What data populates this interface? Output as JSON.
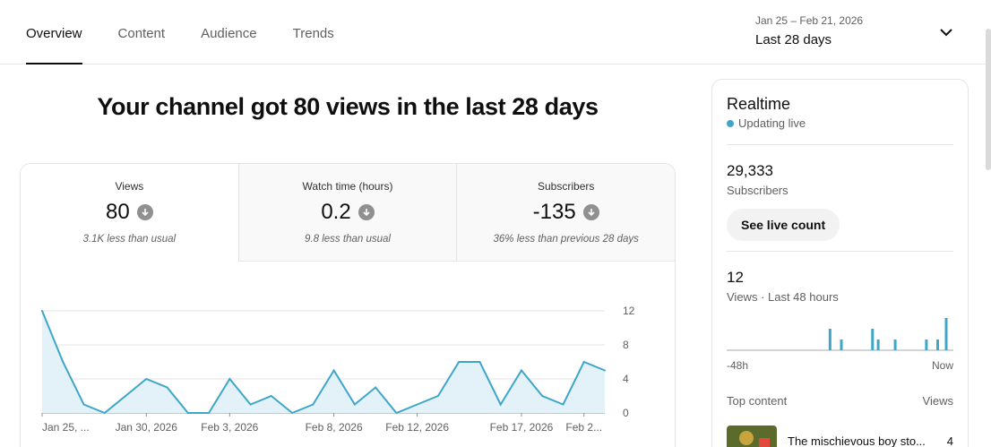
{
  "tabs": [
    {
      "label": "Overview",
      "active": true
    },
    {
      "label": "Content",
      "active": false
    },
    {
      "label": "Audience",
      "active": false
    },
    {
      "label": "Trends",
      "active": false
    }
  ],
  "date_range": {
    "sub": "Jan 25 – Feb 21, 2026",
    "main": "Last 28 days",
    "icon": "chevron-down-icon"
  },
  "headline": "Your channel got 80 views in the last 28 days",
  "metrics": [
    {
      "label": "Views",
      "value": "80",
      "note": "3.1K less than usual",
      "icon": "arrow-down-icon"
    },
    {
      "label": "Watch time (hours)",
      "value": "0.2",
      "note": "9.8 less than usual",
      "icon": "arrow-down-icon"
    },
    {
      "label": "Subscribers",
      "value": "-135",
      "note": "36% less than previous 28 days",
      "icon": "arrow-down-icon"
    }
  ],
  "chart_data": {
    "type": "area",
    "x_ticks": [
      "Jan 25, ...",
      "Jan 30, 2026",
      "Feb 3, 2026",
      "Feb 8, 2026",
      "Feb 12, 2026",
      "Feb 17, 2026",
      "Feb 2..."
    ],
    "x_tick_index": [
      0,
      5,
      9,
      14,
      18,
      23,
      26
    ],
    "y_ticks": [
      0,
      4,
      8,
      12
    ],
    "ylim": [
      0,
      12
    ],
    "values": [
      12,
      6,
      1,
      0,
      2,
      4,
      3,
      0,
      0,
      4,
      1,
      2,
      0,
      1,
      5,
      1,
      3,
      0,
      1,
      2,
      6,
      6,
      1,
      5,
      2,
      1,
      6,
      5
    ],
    "line_color": "#3ea6c9",
    "fill_color": "#e3f2f8",
    "grid": true
  },
  "realtime": {
    "title": "Realtime",
    "status": "Updating live",
    "subscribers_value": "29,333",
    "subscribers_label": "Subscribers",
    "button": "See live count",
    "views_value": "12",
    "views_label": "Views · Last 48 hours",
    "spark_values": [
      0,
      0,
      0,
      0,
      0,
      0,
      0,
      0,
      0,
      0,
      0,
      0,
      0,
      0,
      0,
      0,
      0,
      0,
      0,
      0,
      0,
      0,
      0,
      0,
      0,
      0,
      0,
      0,
      0,
      0,
      0,
      0,
      0,
      0,
      0,
      0,
      0,
      0,
      0,
      0,
      0,
      0,
      0,
      0,
      0,
      0,
      0,
      0,
      0,
      0,
      0,
      0,
      0,
      0,
      0,
      0,
      0,
      0,
      0,
      0,
      0,
      0,
      0,
      0,
      0,
      0,
      0,
      0,
      0,
      0,
      0,
      0,
      0,
      0,
      0,
      0,
      0,
      0,
      0,
      0,
      0,
      0,
      0,
      0,
      0,
      0,
      0,
      0,
      0,
      0,
      0,
      0,
      0,
      0,
      0,
      0,
      0,
      0,
      0,
      0
    ],
    "spark_bars": [
      {
        "h": 36,
        "v": 2
      },
      {
        "h": 40,
        "v": 1
      },
      {
        "h": 51,
        "v": 2
      },
      {
        "h": 53,
        "v": 1
      },
      {
        "h": 59,
        "v": 1
      },
      {
        "h": 70,
        "v": 1
      },
      {
        "h": 74,
        "v": 1
      },
      {
        "h": 77,
        "v": 3
      }
    ],
    "spark_max": 3,
    "axis_left": "-48h",
    "axis_right": "Now",
    "top_content_label": "Top content",
    "top_content_col": "Views",
    "top_item_title": "The mischievous boy sto...",
    "top_item_views": "4",
    "accent": "#3ea6c9"
  }
}
